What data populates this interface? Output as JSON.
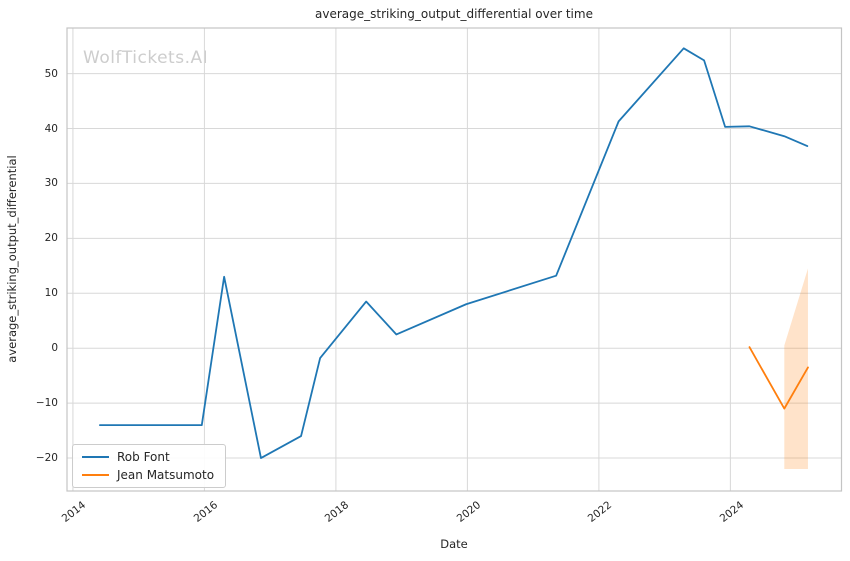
{
  "watermark": "WolfTickets.AI",
  "colors": {
    "series_blue": "#1f77b4",
    "series_orange": "#ff7f0e",
    "band_fill": "#ff7f0e",
    "grid": "#d8d8d8",
    "spine": "#c4c4c4",
    "text": "#262626",
    "watermark": "#cdcdcd",
    "background": "#ffffff"
  },
  "chart_data": {
    "type": "line",
    "title": "average_striking_output_differential over time",
    "xlabel": "Date",
    "ylabel": "average_striking_output_differential",
    "x_range": [
      2013.91,
      2025.69
    ],
    "y_range": [
      -26.0,
      58.3
    ],
    "x_ticks": [
      2014,
      2016,
      2018,
      2020,
      2022,
      2024
    ],
    "y_ticks": [
      -20,
      -10,
      0,
      10,
      20,
      30,
      40,
      50
    ],
    "grid": true,
    "legend_position": "lower left",
    "series": [
      {
        "name": "Rob Font",
        "color": "#1f77b4",
        "x": [
          2014.41,
          2015.96,
          2016.3,
          2016.86,
          2017.47,
          2017.76,
          2018.46,
          2018.92,
          2019.98,
          2021.35,
          2022.3,
          2023.29,
          2023.6,
          2023.92,
          2024.29,
          2024.82,
          2025.17
        ],
        "y": [
          -14,
          -14,
          13,
          -20,
          -16,
          -1.8,
          8.5,
          2.5,
          8,
          13.2,
          41.3,
          54.6,
          52.4,
          40.3,
          40.4,
          38.6,
          36.8
        ]
      },
      {
        "name": "Jean Matsumoto",
        "color": "#ff7f0e",
        "x": [
          2024.29,
          2024.82,
          2025.18
        ],
        "y": [
          0.2,
          -11,
          -3.5
        ],
        "band": {
          "x": [
            2024.82,
            2025.18
          ],
          "upper": [
            0.5,
            14.5
          ],
          "lower": [
            -22,
            -22
          ],
          "opacity": 0.22
        }
      }
    ]
  },
  "legend": {
    "items": [
      {
        "label": "Rob Font",
        "color": "#1f77b4"
      },
      {
        "label": "Jean Matsumoto",
        "color": "#ff7f0e"
      }
    ]
  }
}
